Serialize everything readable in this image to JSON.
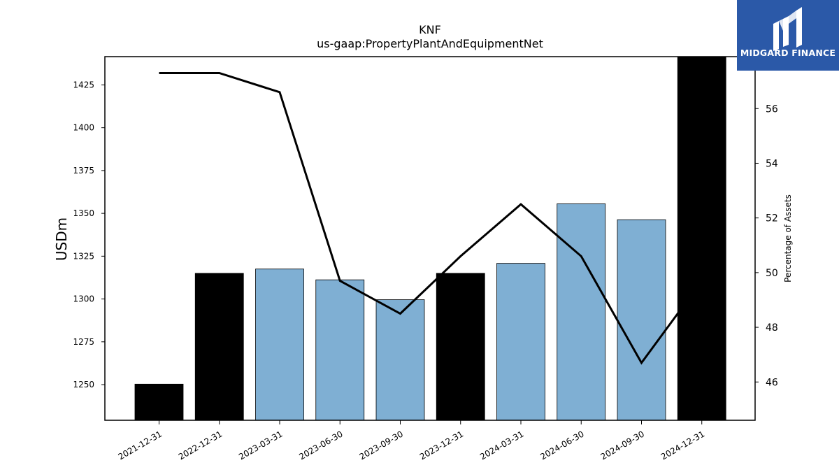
{
  "brand": {
    "name": "MIDGARD FINANCE",
    "logo_icon": "midgard-m-logo-icon",
    "color": "#2b59a8"
  },
  "chart_data": {
    "type": "bar",
    "title": "KNF",
    "subtitle": "us-gaap:PropertyPlantAndEquipmentNet",
    "ylabel": "USDm",
    "y2label": "Percentage of Assets",
    "categories": [
      "2021-12-31",
      "2022-12-31",
      "2023-03-31",
      "2023-06-30",
      "2023-09-30",
      "2023-12-31",
      "2024-03-31",
      "2024-06-30",
      "2024-09-30",
      "2024-12-31"
    ],
    "series": [
      {
        "kind": "bar",
        "axis": "left",
        "values": [
          1250.3,
          1315.0,
          1317.5,
          1311.2,
          1299.6,
          1315.0,
          1320.8,
          1355.6,
          1346.3,
          1443.0
        ],
        "colors": [
          "#000000",
          "#000000",
          "#7fafd3",
          "#7fafd3",
          "#7fafd3",
          "#000000",
          "#7fafd3",
          "#7fafd3",
          "#7fafd3",
          "#000000"
        ]
      },
      {
        "kind": "line",
        "axis": "right",
        "values": [
          57.3,
          57.3,
          56.6,
          49.7,
          48.5,
          50.6,
          52.5,
          50.6,
          46.7,
          49.7
        ],
        "color": "#000000"
      }
    ],
    "ylim": [
      1229.2,
      1441.5
    ],
    "y2lim": [
      44.6,
      57.9
    ],
    "yticks": [
      1250,
      1275,
      1300,
      1325,
      1350,
      1375,
      1400,
      1425
    ],
    "y2ticks": [
      46,
      48,
      50,
      52,
      54,
      56
    ],
    "grid": false,
    "legend": "none"
  }
}
